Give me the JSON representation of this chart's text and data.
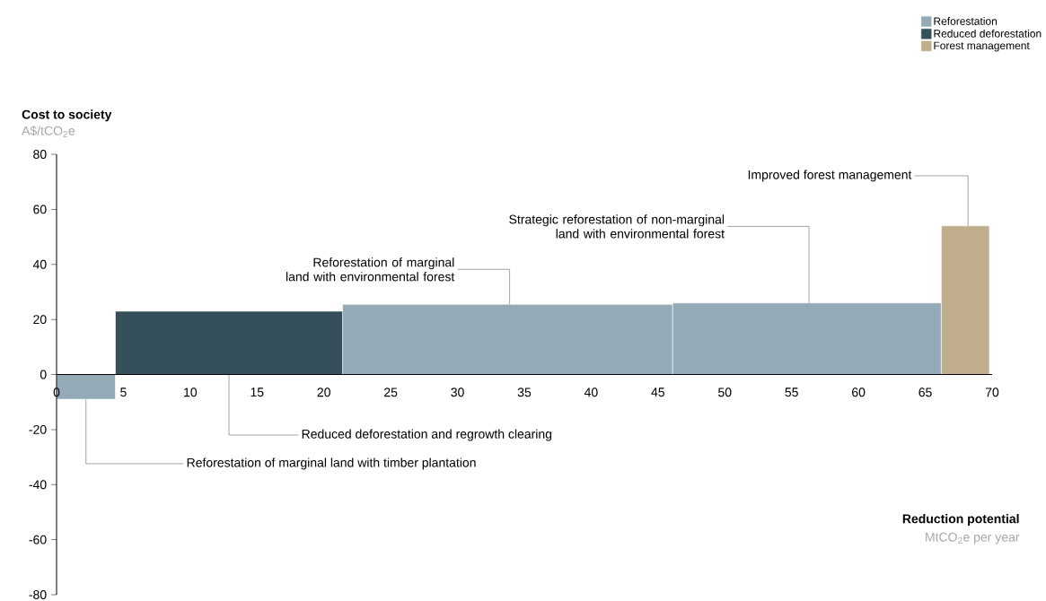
{
  "chart_data": {
    "type": "histogram",
    "bins": [
      0,
      4.4,
      21.4,
      46.1,
      66.2,
      69.8
    ],
    "series": [
      {
        "name": "Reforestation",
        "color": "#94abb7",
        "values": [
          -9,
          null,
          25.5,
          26,
          null
        ]
      },
      {
        "name": "Reduced deforestation",
        "color": "#36505b",
        "values": [
          null,
          23,
          null,
          null,
          null
        ]
      },
      {
        "name": "Forest management",
        "color": "#bfad8b",
        "values": [
          null,
          null,
          null,
          null,
          54
        ]
      }
    ],
    "xlabel": "Reduction potential",
    "ylabel": "Cost to society",
    "annotations": [
      "A$/tCO$_{2}$e",
      "MtCO$_{2}$e per year",
      {
        "text": "Reforestation of marginal land with timber plantation",
        "x": 2.2,
        "y": -9
      },
      {
        "text": "Reduced deforestation and regrowth clearing",
        "x": 12.9,
        "y": 0
      },
      {
        "text": "Reforestation of marginal land with environmental forest",
        "x": 33.9,
        "y": 25.5
      },
      {
        "text": "Strategic reforestation of non-marginal land with environmental forest",
        "x": 56.3,
        "y": 26
      },
      {
        "text": "Improved forest management",
        "x": 68.2,
        "y": 54
      }
    ],
    "xlim": [
      0,
      70
    ],
    "ylim": [
      -80,
      80
    ],
    "xticks": [
      0,
      5,
      10,
      15,
      20,
      25,
      30,
      35,
      40,
      45,
      50,
      55,
      60,
      65,
      70
    ],
    "yticks": [
      -80,
      -60,
      -40,
      -20,
      0,
      20,
      40,
      60,
      80
    ],
    "legend": "top right"
  }
}
